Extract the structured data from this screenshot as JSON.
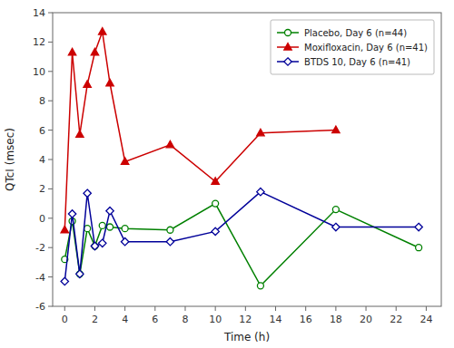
{
  "chart_data": {
    "type": "line",
    "x": [
      0,
      0.5,
      1,
      1.5,
      2,
      2.5,
      3,
      4,
      7,
      10,
      13,
      18,
      23.5
    ],
    "series": [
      {
        "name": "Placebo, Day 6 (n=44)",
        "color": "#008000",
        "marker": "circle-open",
        "line_style": "solid",
        "values": [
          -2.8,
          -0.2,
          -3.8,
          -0.7,
          -1.9,
          -0.5,
          -0.6,
          -0.7,
          -0.8,
          1.0,
          -4.6,
          0.6,
          -2.0
        ]
      },
      {
        "name": "Moxifloxacin, Day 6 (n=41)",
        "color": "#cc0000",
        "marker": "triangle-up",
        "line_style": "solid",
        "values": [
          -0.8,
          11.3,
          5.7,
          9.1,
          11.3,
          12.7,
          9.2,
          3.85,
          5.0,
          2.5,
          5.8,
          6.0,
          null
        ]
      },
      {
        "name": "BTDS 10, Day 6 (n=41)",
        "color": "#000099",
        "marker": "diamond-open",
        "line_style": "solid",
        "values": [
          -4.3,
          0.3,
          -3.8,
          1.7,
          -1.9,
          -1.7,
          0.5,
          -1.6,
          -1.6,
          -0.9,
          1.8,
          -0.6,
          -0.6
        ]
      }
    ],
    "xlabel": "Time (h)",
    "ylabel": "QTcI (msec)",
    "xlim": [
      -0.8,
      25.0
    ],
    "ylim": [
      -6,
      14
    ],
    "xticks": [
      0,
      2,
      4,
      6,
      8,
      10,
      12,
      14,
      16,
      18,
      20,
      22,
      24
    ],
    "yticks": [
      -6,
      -4,
      -2,
      0,
      2,
      4,
      6,
      8,
      10,
      12,
      14
    ],
    "grid": false,
    "legend": "upper right"
  }
}
